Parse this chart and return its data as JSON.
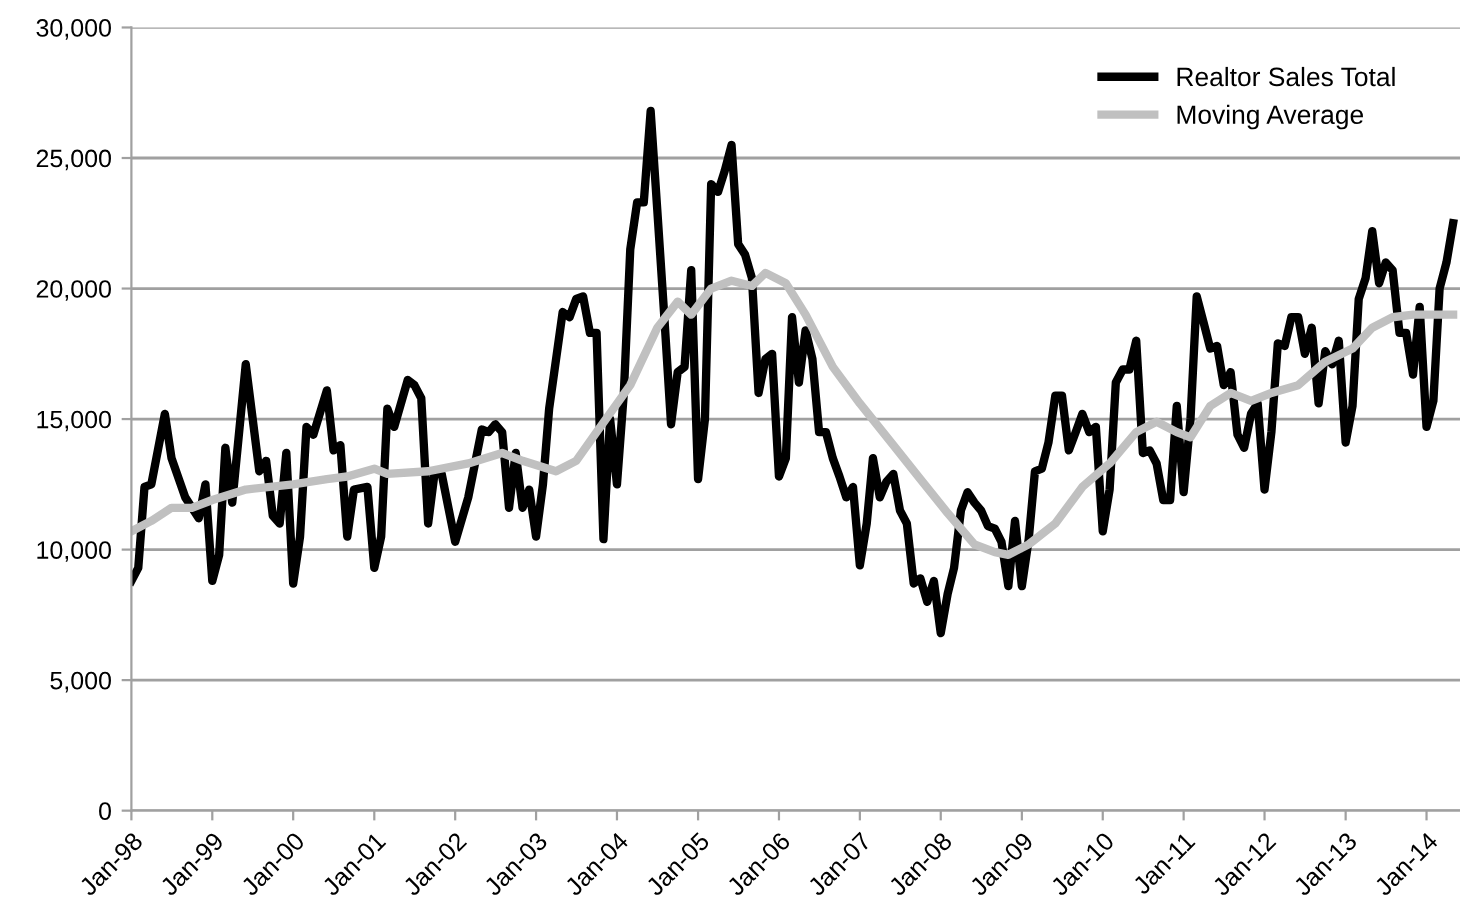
{
  "chart_data": {
    "type": "line",
    "xlim": [
      "1998-01",
      "2014-06"
    ],
    "xticks": [
      {
        "value": "1998-01",
        "label": "Jan-98"
      },
      {
        "value": "1999-01",
        "label": "Jan-99"
      },
      {
        "value": "2000-01",
        "label": "Jan-00"
      },
      {
        "value": "2001-01",
        "label": "Jan-01"
      },
      {
        "value": "2002-01",
        "label": "Jan-02"
      },
      {
        "value": "2003-01",
        "label": "Jan-03"
      },
      {
        "value": "2004-01",
        "label": "Jan-04"
      },
      {
        "value": "2005-01",
        "label": "Jan-05"
      },
      {
        "value": "2006-01",
        "label": "Jan-06"
      },
      {
        "value": "2007-01",
        "label": "Jan-07"
      },
      {
        "value": "2008-01",
        "label": "Jan-08"
      },
      {
        "value": "2009-01",
        "label": "Jan-09"
      },
      {
        "value": "2010-01",
        "label": "Jan-10"
      },
      {
        "value": "2011-01",
        "label": "Jan-11"
      },
      {
        "value": "2012-01",
        "label": "Jan-12"
      },
      {
        "value": "2013-01",
        "label": "Jan-13"
      },
      {
        "value": "2014-01",
        "label": "Jan-14"
      }
    ],
    "ylim": [
      0,
      30000
    ],
    "yticks": [
      {
        "value": 0,
        "label": "0"
      },
      {
        "value": 5000,
        "label": "5,000"
      },
      {
        "value": 10000,
        "label": "10,000"
      },
      {
        "value": 15000,
        "label": "15,000"
      },
      {
        "value": 20000,
        "label": "20,000"
      },
      {
        "value": 25000,
        "label": "25,000"
      },
      {
        "value": 30000,
        "label": "30,000"
      }
    ],
    "grid": "y",
    "legend": "top right",
    "marker": "none",
    "line_style": "solid",
    "series": [
      {
        "name": "Realtor Sales Total",
        "color": "#000000",
        "x": [
          "1998-01",
          "1998-02",
          "1998-03",
          "1998-04",
          "1998-06",
          "1998-07",
          "1998-09",
          "1998-11",
          "1998-12",
          "1999-01",
          "1999-02",
          "1999-03",
          "1999-04",
          "1999-06",
          "1999-08",
          "1999-09",
          "1999-10",
          "1999-11",
          "1999-12",
          "2000-01",
          "2000-02",
          "2000-03",
          "2000-04",
          "2000-06",
          "2000-07",
          "2000-08",
          "2000-09",
          "2000-10",
          "2000-12",
          "2001-01",
          "2001-02",
          "2001-03",
          "2001-04",
          "2001-06",
          "2001-07",
          "2001-08",
          "2001-09",
          "2001-10",
          "2001-11",
          "2002-01",
          "2002-03",
          "2002-05",
          "2002-06",
          "2002-07",
          "2002-08",
          "2002-09",
          "2002-10",
          "2002-11",
          "2002-12",
          "2003-01",
          "2003-02",
          "2003-03",
          "2003-05",
          "2003-06",
          "2003-07",
          "2003-08",
          "2003-09",
          "2003-10",
          "2003-11",
          "2003-12",
          "2004-01",
          "2004-02",
          "2004-03",
          "2004-04",
          "2004-05",
          "2004-06",
          "2004-07",
          "2004-08",
          "2004-09",
          "2004-10",
          "2004-11",
          "2004-12",
          "2005-01",
          "2005-02",
          "2005-03",
          "2005-04",
          "2005-05",
          "2005-06",
          "2005-07",
          "2005-08",
          "2005-09",
          "2005-10",
          "2005-11",
          "2005-12",
          "2006-01",
          "2006-02",
          "2006-03",
          "2006-04",
          "2006-05",
          "2006-06",
          "2006-07",
          "2006-08",
          "2006-09",
          "2006-10",
          "2006-11",
          "2006-12",
          "2007-01",
          "2007-02",
          "2007-03",
          "2007-04",
          "2007-05",
          "2007-06",
          "2007-07",
          "2007-08",
          "2007-09",
          "2007-10",
          "2007-11",
          "2007-12",
          "2008-01",
          "2008-02",
          "2008-03",
          "2008-04",
          "2008-05",
          "2008-06",
          "2008-07",
          "2008-08",
          "2008-09",
          "2008-10",
          "2008-11",
          "2008-12",
          "2009-01",
          "2009-02",
          "2009-03",
          "2009-04",
          "2009-05",
          "2009-06",
          "2009-07",
          "2009-08",
          "2009-09",
          "2009-10",
          "2009-11",
          "2009-12",
          "2010-01",
          "2010-02",
          "2010-03",
          "2010-04",
          "2010-05",
          "2010-06",
          "2010-07",
          "2010-08",
          "2010-09",
          "2010-10",
          "2010-11",
          "2010-12",
          "2011-01",
          "2011-02",
          "2011-03",
          "2011-04",
          "2011-05",
          "2011-06",
          "2011-07",
          "2011-08",
          "2011-09",
          "2011-10",
          "2011-11",
          "2011-12",
          "2012-01",
          "2012-02",
          "2012-03",
          "2012-04",
          "2012-05",
          "2012-06",
          "2012-07",
          "2012-08",
          "2012-09",
          "2012-10",
          "2012-11",
          "2012-12",
          "2013-01",
          "2013-02",
          "2013-03",
          "2013-04",
          "2013-05",
          "2013-06",
          "2013-07",
          "2013-08",
          "2013-09",
          "2013-10",
          "2013-11",
          "2013-12",
          "2014-01",
          "2014-02",
          "2014-03",
          "2014-04",
          "2014-05"
        ],
        "values": [
          8800,
          9300,
          12400,
          12500,
          15200,
          13500,
          12000,
          11200,
          12500,
          8800,
          9800,
          13900,
          11800,
          17100,
          13000,
          13400,
          11300,
          11000,
          13700,
          8700,
          10500,
          14700,
          14400,
          16100,
          13800,
          14000,
          10500,
          12300,
          12400,
          9300,
          10500,
          15400,
          14700,
          16500,
          16300,
          15800,
          11000,
          13000,
          12900,
          10300,
          12000,
          14600,
          14500,
          14800,
          14500,
          11600,
          13700,
          11600,
          12300,
          10500,
          12500,
          15400,
          19100,
          18900,
          19600,
          19700,
          18300,
          18300,
          10400,
          15000,
          12500,
          16000,
          21500,
          23300,
          23300,
          26800,
          23000,
          19000,
          14800,
          16800,
          17000,
          20700,
          12700,
          15000,
          24000,
          23700,
          24500,
          25500,
          21700,
          21300,
          20400,
          16000,
          17300,
          17500,
          12800,
          13500,
          18900,
          16400,
          18400,
          17300,
          14500,
          14500,
          13500,
          12800,
          12000,
          12400,
          9400,
          11000,
          13500,
          12000,
          12600,
          12900,
          11500,
          11000,
          8700,
          8900,
          8000,
          8800,
          6800,
          8300,
          9300,
          11500,
          12200,
          11800,
          11500,
          10900,
          10800,
          10300,
          8600,
          11100,
          8600,
          10400,
          13000,
          13100,
          14100,
          15900,
          15900,
          13800,
          14500,
          15200,
          14500,
          14700,
          10700,
          12300,
          16400,
          16900,
          16900,
          18000,
          13700,
          13800,
          13300,
          11900,
          11900,
          15500,
          12200,
          15000,
          19700,
          18700,
          17700,
          17800,
          16300,
          16800,
          14400,
          13900,
          15200,
          15600,
          12300,
          14500,
          17900,
          17800,
          18900,
          18900,
          17500,
          18500,
          15600,
          17600,
          17100,
          18000,
          14100,
          15500,
          19600,
          20400,
          22200,
          20200,
          21000,
          20700,
          18300,
          18300,
          16700,
          19300,
          14700,
          15700,
          20000,
          21000,
          22500
        ]
      },
      {
        "name": "Moving Average",
        "color": "#c0c0c0",
        "x": [
          "1998-01",
          "1998-04",
          "1998-07",
          "1998-10",
          "1999-01",
          "1999-06",
          "2000-01",
          "2000-06",
          "2000-09",
          "2001-01",
          "2001-03",
          "2001-09",
          "2002-03",
          "2002-08",
          "2002-11",
          "2003-04",
          "2003-07",
          "2003-10",
          "2004-03",
          "2004-07",
          "2004-10",
          "2004-12",
          "2005-03",
          "2005-06",
          "2005-09",
          "2005-11",
          "2006-02",
          "2006-05",
          "2006-09",
          "2007-01",
          "2007-06",
          "2007-10",
          "2008-02",
          "2008-06",
          "2008-09",
          "2008-11",
          "2009-02",
          "2009-06",
          "2009-10",
          "2010-02",
          "2010-06",
          "2010-09",
          "2010-12",
          "2011-02",
          "2011-05",
          "2011-08",
          "2011-11",
          "2012-02",
          "2012-06",
          "2012-10",
          "2013-02",
          "2013-05",
          "2013-08",
          "2013-11",
          "2014-05"
        ],
        "values": [
          10700,
          11100,
          11600,
          11600,
          11900,
          12300,
          12500,
          12700,
          12800,
          13100,
          12900,
          13000,
          13300,
          13700,
          13400,
          13000,
          13400,
          14500,
          16300,
          18500,
          19500,
          19000,
          20000,
          20300,
          20100,
          20600,
          20200,
          19000,
          17000,
          15600,
          14000,
          12700,
          11400,
          10200,
          9900,
          9800,
          10200,
          11000,
          12400,
          13300,
          14500,
          14900,
          14500,
          14300,
          15500,
          16000,
          15700,
          16000,
          16300,
          17200,
          17700,
          18500,
          18900,
          19000,
          19000
        ]
      }
    ]
  }
}
